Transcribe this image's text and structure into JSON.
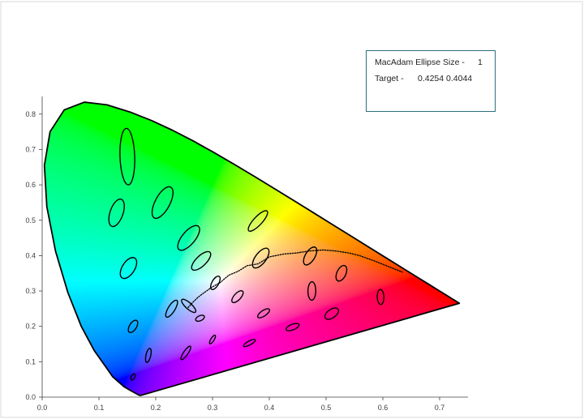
{
  "chart_data": {
    "type": "scatter",
    "title": "",
    "xlabel": "",
    "ylabel": "",
    "xlim": [
      0,
      0.75
    ],
    "ylim": [
      0,
      0.85
    ],
    "x_ticks": [
      "0.0",
      "0.1",
      "0.2",
      "0.3",
      "0.4",
      "0.5",
      "0.6",
      "0.7"
    ],
    "y_ticks": [
      "0.0",
      "0.1",
      "0.2",
      "0.3",
      "0.4",
      "0.5",
      "0.6",
      "0.7",
      "0.8"
    ],
    "spectral_locus": [
      [
        0.1741,
        0.005
      ],
      [
        0.1738,
        0.0049
      ],
      [
        0.173,
        0.0048
      ],
      [
        0.1714,
        0.0051
      ],
      [
        0.1689,
        0.0069
      ],
      [
        0.1644,
        0.0109
      ],
      [
        0.1566,
        0.0177
      ],
      [
        0.144,
        0.0297
      ],
      [
        0.1241,
        0.0578
      ],
      [
        0.0913,
        0.1327
      ],
      [
        0.0687,
        0.2007
      ],
      [
        0.0454,
        0.295
      ],
      [
        0.0235,
        0.4127
      ],
      [
        0.0082,
        0.5384
      ],
      [
        0.0039,
        0.6548
      ],
      [
        0.0139,
        0.7502
      ],
      [
        0.0389,
        0.812
      ],
      [
        0.0743,
        0.8338
      ],
      [
        0.1142,
        0.8262
      ],
      [
        0.1547,
        0.8059
      ],
      [
        0.1929,
        0.7816
      ],
      [
        0.2296,
        0.7543
      ],
      [
        0.2658,
        0.7243
      ],
      [
        0.3016,
        0.6923
      ],
      [
        0.3373,
        0.6589
      ],
      [
        0.3731,
        0.6245
      ],
      [
        0.4087,
        0.5896
      ],
      [
        0.4441,
        0.5547
      ],
      [
        0.4788,
        0.5202
      ],
      [
        0.5125,
        0.4866
      ],
      [
        0.5448,
        0.4544
      ],
      [
        0.5752,
        0.4242
      ],
      [
        0.6029,
        0.3965
      ],
      [
        0.627,
        0.3725
      ],
      [
        0.6482,
        0.3514
      ],
      [
        0.6658,
        0.334
      ],
      [
        0.6801,
        0.3197
      ],
      [
        0.6915,
        0.3083
      ],
      [
        0.7006,
        0.2993
      ],
      [
        0.7079,
        0.292
      ],
      [
        0.714,
        0.2859
      ],
      [
        0.719,
        0.2809
      ],
      [
        0.723,
        0.277
      ],
      [
        0.726,
        0.274
      ],
      [
        0.7283,
        0.2717
      ],
      [
        0.73,
        0.27
      ],
      [
        0.7311,
        0.2689
      ],
      [
        0.732,
        0.268
      ],
      [
        0.7327,
        0.2673
      ],
      [
        0.7334,
        0.2666
      ],
      [
        0.734,
        0.266
      ],
      [
        0.7344,
        0.2656
      ],
      [
        0.7347,
        0.2653
      ]
    ],
    "planckian_locus": [
      [
        0.2565,
        0.2524
      ],
      [
        0.2647,
        0.267
      ],
      [
        0.275,
        0.283
      ],
      [
        0.285,
        0.295
      ],
      [
        0.2986,
        0.3105
      ],
      [
        0.3135,
        0.3237
      ],
      [
        0.3287,
        0.3447
      ],
      [
        0.3447,
        0.3553
      ],
      [
        0.3608,
        0.3714
      ],
      [
        0.3805,
        0.3768
      ],
      [
        0.4003,
        0.3965
      ],
      [
        0.4254,
        0.4044
      ],
      [
        0.4476,
        0.4074
      ],
      [
        0.47,
        0.413
      ],
      [
        0.495,
        0.416
      ],
      [
        0.518,
        0.413
      ],
      [
        0.54,
        0.4075
      ],
      [
        0.559,
        0.4
      ],
      [
        0.585,
        0.385
      ],
      [
        0.61,
        0.369
      ],
      [
        0.635,
        0.353
      ]
    ],
    "macadam_ellipses": [
      {
        "x": 0.16,
        "y": 0.057,
        "a": 0.00085,
        "b": 0.00035,
        "theta": 62.5
      },
      {
        "x": 0.187,
        "y": 0.118,
        "a": 0.0022,
        "b": 0.00055,
        "theta": 77.0
      },
      {
        "x": 0.253,
        "y": 0.125,
        "a": 0.0025,
        "b": 0.0005,
        "theta": 55.5
      },
      {
        "x": 0.15,
        "y": 0.68,
        "a": 0.0096,
        "b": 0.0023,
        "theta": 92.0
      },
      {
        "x": 0.131,
        "y": 0.521,
        "a": 0.0047,
        "b": 0.002,
        "theta": 71.0
      },
      {
        "x": 0.212,
        "y": 0.55,
        "a": 0.0058,
        "b": 0.0023,
        "theta": 62.0
      },
      {
        "x": 0.258,
        "y": 0.45,
        "a": 0.005,
        "b": 0.002,
        "theta": 50.0
      },
      {
        "x": 0.152,
        "y": 0.365,
        "a": 0.0038,
        "b": 0.0019,
        "theta": 57.5
      },
      {
        "x": 0.28,
        "y": 0.385,
        "a": 0.004,
        "b": 0.0015,
        "theta": 44.0
      },
      {
        "x": 0.38,
        "y": 0.498,
        "a": 0.0044,
        "b": 0.0012,
        "theta": 47.0
      },
      {
        "x": 0.16,
        "y": 0.2,
        "a": 0.0021,
        "b": 0.00095,
        "theta": 58.0
      },
      {
        "x": 0.228,
        "y": 0.25,
        "a": 0.0031,
        "b": 0.0009,
        "theta": 58.0
      },
      {
        "x": 0.258,
        "y": 0.258,
        "a": 0.0029,
        "b": 0.0008,
        "theta": 138.0
      },
      {
        "x": 0.305,
        "y": 0.323,
        "a": 0.0023,
        "b": 0.0009,
        "theta": 60.0
      },
      {
        "x": 0.385,
        "y": 0.393,
        "a": 0.0038,
        "b": 0.0016,
        "theta": 53.0
      },
      {
        "x": 0.472,
        "y": 0.399,
        "a": 0.0032,
        "b": 0.0014,
        "theta": 59.0
      },
      {
        "x": 0.527,
        "y": 0.35,
        "a": 0.0026,
        "b": 0.0013,
        "theta": 65.0
      },
      {
        "x": 0.475,
        "y": 0.3,
        "a": 0.0029,
        "b": 0.0011,
        "theta": 89.0
      },
      {
        "x": 0.51,
        "y": 0.236,
        "a": 0.0024,
        "b": 0.0012,
        "theta": 35.0
      },
      {
        "x": 0.596,
        "y": 0.283,
        "a": 0.0023,
        "b": 0.0009,
        "theta": 92.0
      },
      {
        "x": 0.344,
        "y": 0.284,
        "a": 0.0023,
        "b": 0.0009,
        "theta": 47.0
      },
      {
        "x": 0.39,
        "y": 0.237,
        "a": 0.0021,
        "b": 0.0007,
        "theta": 34.0
      },
      {
        "x": 0.441,
        "y": 0.198,
        "a": 0.0021,
        "b": 0.0007,
        "theta": 22.0
      },
      {
        "x": 0.278,
        "y": 0.223,
        "a": 0.0013,
        "b": 0.0006,
        "theta": 25.0
      },
      {
        "x": 0.3,
        "y": 0.163,
        "a": 0.0014,
        "b": 0.0003,
        "theta": 58.0
      },
      {
        "x": 0.365,
        "y": 0.153,
        "a": 0.002,
        "b": 0.0004,
        "theta": 28.0
      }
    ],
    "target": {
      "x": 0.4254,
      "y": 0.4044
    },
    "grid": false,
    "legend": "none"
  },
  "info_box": {
    "ellipse_label": "MacAdam Ellipse Size -",
    "ellipse_value": "1",
    "target_label": "Target -",
    "target_value": "0.4254 0.4044"
  },
  "colors": {
    "border": "#d9d9d9",
    "box_border": "#2e6f7e",
    "axis": "#404040"
  }
}
